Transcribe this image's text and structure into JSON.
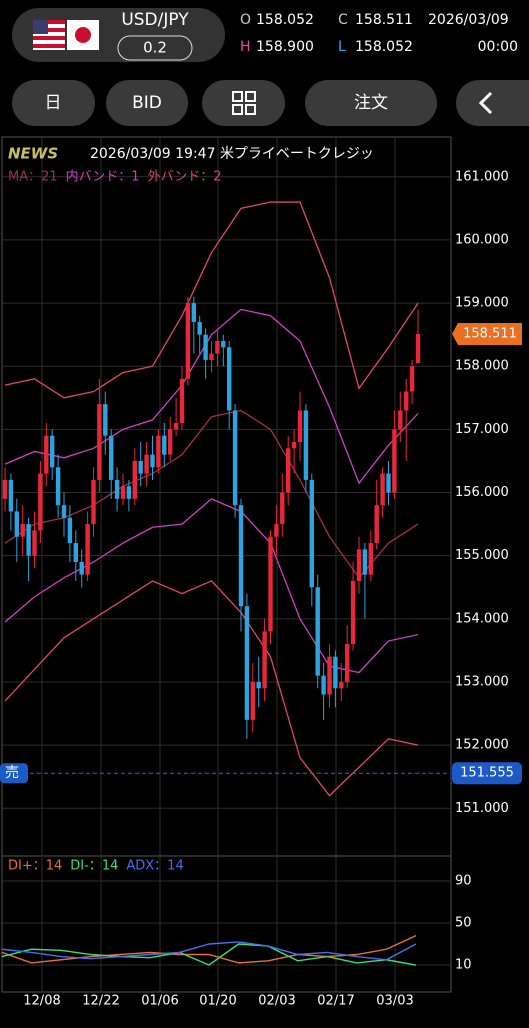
{
  "header": {
    "pair": "USD/JPY",
    "spread": "0.2",
    "open": {
      "label": "O",
      "value": "158.052"
    },
    "close": {
      "label": "C",
      "value": "158.511"
    },
    "high": {
      "label": "H",
      "value": "158.900"
    },
    "low": {
      "label": "L",
      "value": "158.052"
    },
    "date": "2026/03/09",
    "time": "00:00"
  },
  "toolbar": {
    "period": "日",
    "price_type": "BID",
    "order": "注文"
  },
  "news": {
    "tag": "NEWS",
    "text": "2026/03/09 19:47 米プライベートクレジッ"
  },
  "chart_data": {
    "type": "candlestick",
    "legend": [
      {
        "text": "MA：21",
        "color": "#a0304a"
      },
      {
        "text": "内バンド：1",
        "color": "#d040c0"
      },
      {
        "text": "外バンド：2",
        "color": "#e04868"
      }
    ],
    "up_color": "#e8283a",
    "down_color": "#2ba4e0",
    "open": [
      155.9,
      156.2,
      155.7,
      155.3,
      155.5,
      155.0,
      155.4,
      156.3,
      156.9,
      156.4,
      155.8,
      155.6,
      155.2,
      154.9,
      154.7,
      155.5,
      156.2,
      157.4,
      156.9,
      156.2,
      155.9,
      156.1,
      155.9,
      156.5,
      156.3,
      156.6,
      156.4,
      156.9,
      156.6,
      157.0,
      157.1,
      157.8,
      159.0,
      158.7,
      158.5,
      158.1,
      158.2,
      158.4,
      158.3,
      157.3,
      155.8,
      154.2,
      152.4,
      153.0,
      152.9,
      153.8,
      155.3,
      155.5,
      156.0,
      156.7,
      156.8,
      157.3,
      156.2,
      154.5,
      153.1,
      152.8,
      153.4,
      152.9,
      153.0,
      153.6,
      154.6,
      155.1,
      154.7,
      155.2,
      155.8,
      156.3,
      156.0,
      157.0,
      157.3,
      157.6,
      158.052
    ],
    "high": [
      156.4,
      156.3,
      155.9,
      155.8,
      155.6,
      155.7,
      156.5,
      157.1,
      157.0,
      156.6,
      156.0,
      155.8,
      155.4,
      155.1,
      155.7,
      156.4,
      157.8,
      157.6,
      157.0,
      156.4,
      156.3,
      156.2,
      156.7,
      156.8,
      156.8,
      156.9,
      157.0,
      157.1,
      157.2,
      157.5,
      158.0,
      159.1,
      159.1,
      158.8,
      158.6,
      158.4,
      158.6,
      158.5,
      158.4,
      157.4,
      155.9,
      154.4,
      153.3,
      153.4,
      154.0,
      155.4,
      155.8,
      156.3,
      156.9,
      157.0,
      157.6,
      157.4,
      156.3,
      154.7,
      153.3,
      153.6,
      153.5,
      153.3,
      153.9,
      154.9,
      155.3,
      155.2,
      155.4,
      156.2,
      156.4,
      156.5,
      157.3,
      157.6,
      157.8,
      158.1,
      158.9
    ],
    "low": [
      155.7,
      155.4,
      154.9,
      155.0,
      154.6,
      154.8,
      155.2,
      156.1,
      156.2,
      155.6,
      155.3,
      154.9,
      154.6,
      154.5,
      154.6,
      155.3,
      156.0,
      156.6,
      155.9,
      155.7,
      155.8,
      155.7,
      155.8,
      156.1,
      156.1,
      156.2,
      156.3,
      156.4,
      156.5,
      156.9,
      157.0,
      157.7,
      158.2,
      158.2,
      157.8,
      157.9,
      158.0,
      158.0,
      157.0,
      155.6,
      153.8,
      152.1,
      152.2,
      152.6,
      152.7,
      153.6,
      155.0,
      155.3,
      155.8,
      156.3,
      156.5,
      156.0,
      154.2,
      152.9,
      152.4,
      152.6,
      152.6,
      152.7,
      152.9,
      153.5,
      154.4,
      154.0,
      154.6,
      155.1,
      155.6,
      155.8,
      155.9,
      156.8,
      156.5,
      157.4,
      158.052
    ],
    "close": [
      156.2,
      155.7,
      155.3,
      155.5,
      155.0,
      155.4,
      156.3,
      156.9,
      156.4,
      155.8,
      155.6,
      155.2,
      154.9,
      154.7,
      155.5,
      156.2,
      157.4,
      156.9,
      156.2,
      155.9,
      156.1,
      155.9,
      156.5,
      156.3,
      156.6,
      156.4,
      156.9,
      156.6,
      157.0,
      157.1,
      157.8,
      159.0,
      158.7,
      158.5,
      158.1,
      158.2,
      158.4,
      158.3,
      157.3,
      155.8,
      154.2,
      152.4,
      153.0,
      152.9,
      153.8,
      155.3,
      155.5,
      156.0,
      156.7,
      156.8,
      157.3,
      156.2,
      154.5,
      153.1,
      152.8,
      153.4,
      152.9,
      153.0,
      153.6,
      154.6,
      155.1,
      154.7,
      155.2,
      155.8,
      156.3,
      156.0,
      157.0,
      157.3,
      157.6,
      158.0,
      158.511
    ],
    "bands": [
      {
        "color": "#e04868",
        "values": [
          157.7,
          157.8,
          157.5,
          157.6,
          157.9,
          158.0,
          158.8,
          159.8,
          160.5,
          160.6,
          160.6,
          159.4,
          157.65,
          158.3,
          159.0
        ]
      },
      {
        "color": "#d040c0",
        "values": [
          156.45,
          156.65,
          156.55,
          156.7,
          157.0,
          157.15,
          157.7,
          158.5,
          158.9,
          158.8,
          158.4,
          157.35,
          156.15,
          156.75,
          157.25
        ]
      },
      {
        "color": "#a0304a",
        "values": [
          155.2,
          155.5,
          155.6,
          155.8,
          156.1,
          156.3,
          156.6,
          157.2,
          157.3,
          157.0,
          156.2,
          155.3,
          154.65,
          155.2,
          155.5
        ]
      },
      {
        "color": "#d040c0",
        "values": [
          153.95,
          154.35,
          154.65,
          154.9,
          155.2,
          155.45,
          155.5,
          155.9,
          155.7,
          155.2,
          154.0,
          153.25,
          153.15,
          153.65,
          153.75
        ]
      },
      {
        "color": "#e04868",
        "values": [
          152.7,
          153.2,
          153.7,
          154.0,
          154.3,
          154.6,
          154.4,
          154.6,
          154.1,
          153.4,
          151.8,
          151.2,
          151.65,
          152.1,
          152.0
        ]
      }
    ],
    "ylim": [
      150.26,
      161.63
    ],
    "yticks": [
      {
        "value": 161,
        "label": "161.000"
      },
      {
        "value": 160,
        "label": "160.000"
      },
      {
        "value": 159,
        "label": "159.000"
      },
      {
        "value": 158,
        "label": "158.000"
      },
      {
        "value": 157,
        "label": "157.000"
      },
      {
        "value": 156,
        "label": "156.000"
      },
      {
        "value": 155,
        "label": "155.000"
      },
      {
        "value": 154,
        "label": "154.000"
      },
      {
        "value": 153,
        "label": "153.000"
      },
      {
        "value": 152,
        "label": "152.000"
      },
      {
        "value": 151,
        "label": "151.000"
      }
    ],
    "xticks": [
      "12/08",
      "12/22",
      "01/06",
      "01/20",
      "02/03",
      "02/17",
      "03/03"
    ],
    "current_price": {
      "value": 158.511,
      "label": "158.511"
    },
    "order_line": {
      "side": "売",
      "value": 151.555,
      "label": "151.555"
    },
    "indicator": {
      "ylim": [
        -13.8,
        111.9
      ],
      "yticks": [
        90,
        50,
        10
      ],
      "series": [
        {
          "name": "DI+：14",
          "color": "#e8703a",
          "values": [
            22,
            12,
            15,
            18,
            20,
            22,
            20,
            20,
            12,
            14,
            20,
            18,
            20,
            25,
            38
          ]
        },
        {
          "name": "DI-：14",
          "color": "#3adf7a",
          "values": [
            18,
            25,
            24,
            20,
            18,
            17,
            22,
            10,
            30,
            28,
            14,
            18,
            12,
            15,
            10
          ]
        },
        {
          "name": "ADX：14",
          "color": "#4a6ef0",
          "values": [
            25,
            22,
            18,
            16,
            18,
            20,
            22,
            30,
            32,
            28,
            20,
            22,
            18,
            15,
            30
          ]
        }
      ]
    }
  }
}
